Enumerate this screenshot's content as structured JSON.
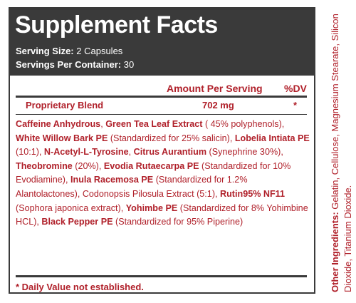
{
  "title": "Supplement Facts",
  "serving_size": {
    "label": "Serving Size:",
    "value": "2 Capsules"
  },
  "servings_per_container": {
    "label": "Servings Per Container:",
    "value": "30"
  },
  "columns": {
    "amount": "Amount Per Serving",
    "dv": "%DV"
  },
  "blend": {
    "name": "Proprietary Blend",
    "amount": "702 mg",
    "dv": "*"
  },
  "ingredients": [
    {
      "name": "Caffeine Anhydrous",
      "detail": ""
    },
    {
      "name": "Green Tea Leaf Extract",
      "detail": "( 45% polyphenols)"
    },
    {
      "name": "White Willow Bark PE",
      "detail": "(Standardized for 25% salicin)"
    },
    {
      "name": "Lobelia Intiata PE",
      "detail": "(10:1)"
    },
    {
      "name": "N-Acetyl-L-Tyrosine",
      "detail": ""
    },
    {
      "name": "Citrus Aurantium",
      "detail": "(Synephrine 30%)"
    },
    {
      "name": "Theobromine",
      "detail": "(20%)"
    },
    {
      "name": "Evodia Rutaecarpa PE",
      "detail": "(Standardized for 10% Evodiamine)"
    },
    {
      "name": "Inula Racemosa PE",
      "detail": "(Standardized for 1.2% Alantolactones)"
    },
    {
      "name": "",
      "detail": "Codonopsis Pilosula Extract (5:1)"
    },
    {
      "name": "Rutin95% NF11",
      "detail": "(Sophora japonica extract)"
    },
    {
      "name": "Yohimbe PE",
      "detail": "(Standardized for 8% Yohimbine HCL)"
    },
    {
      "name": "Black Pepper PE",
      "detail": "(Standardized for 95% Piperine)"
    }
  ],
  "footnote": "* Daily Value not established.",
  "other_ingredients": {
    "label": "Other Ingredients:",
    "text": "Gelatin, Cellulose, Magnesium Stearate, Silicon Dioxide, Titanium Dioxide."
  },
  "colors": {
    "header_bg": "#3a3a3a",
    "accent_red": "#b0202a"
  }
}
